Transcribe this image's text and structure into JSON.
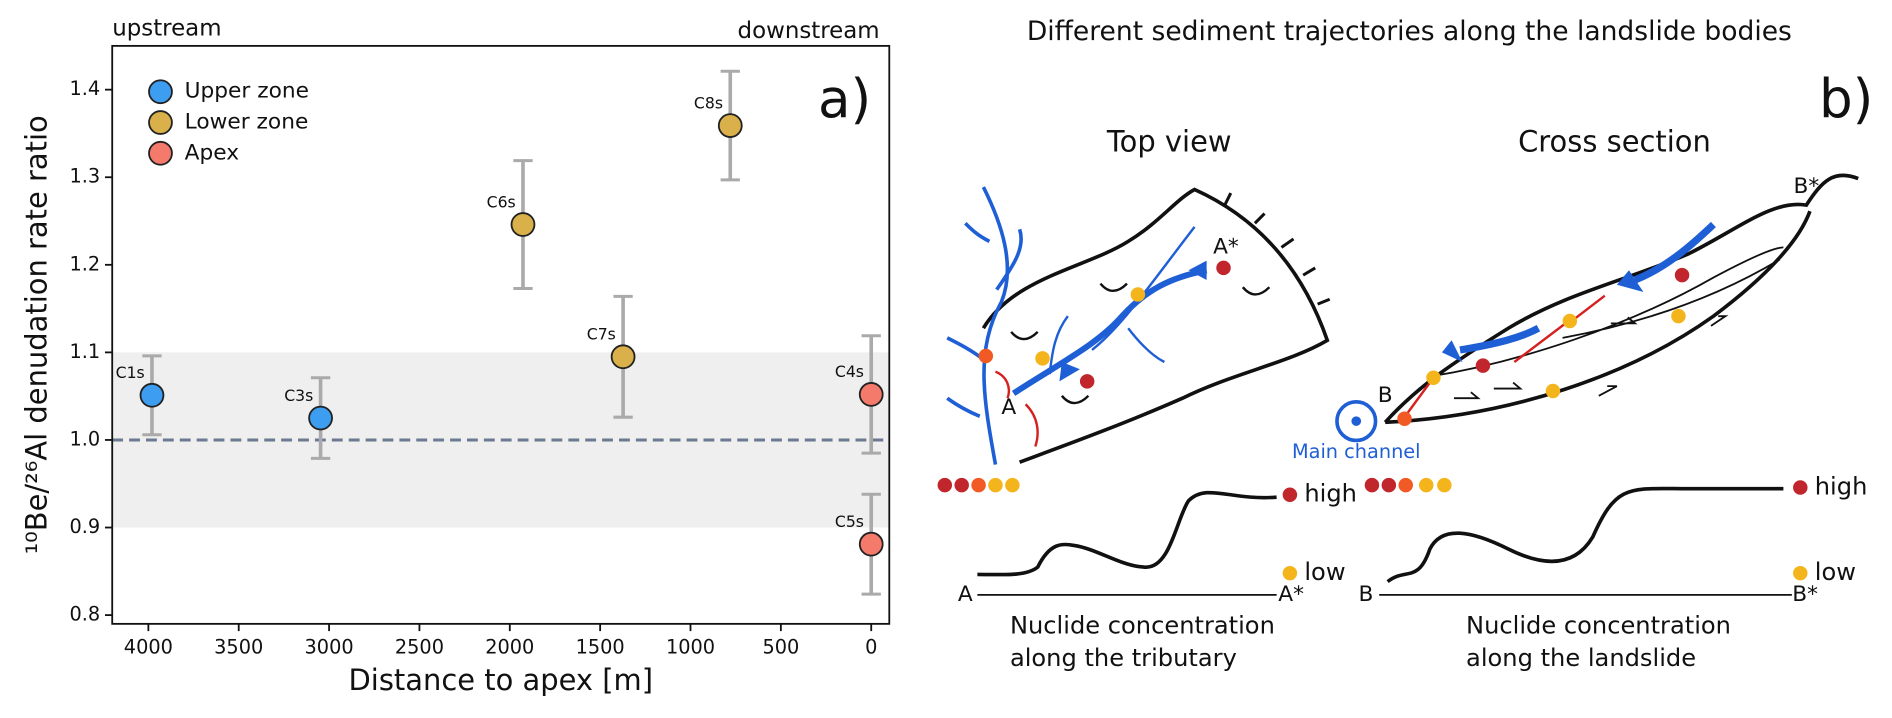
{
  "chart_data": {
    "type": "scatter",
    "xlabel": "Distance to apex [m]",
    "ylabel": "¹⁰Be/²⁶Al denudation rate ratio",
    "annotations": [
      "upstream",
      "downstream",
      "a)"
    ],
    "xlim": [
      4200,
      -100
    ],
    "ylim": [
      0.79,
      1.45
    ],
    "xticks": [
      4000,
      3500,
      3000,
      2500,
      2000,
      1500,
      1000,
      500,
      0
    ],
    "yticks": [
      0.8,
      0.9,
      {
        "value": 1,
        "label": "1.0"
      },
      1.1,
      1.2,
      1.3,
      1.4
    ],
    "band": [
      0.9,
      1.1
    ],
    "band_color": "#efefef",
    "hline": 1,
    "hline_color": "#6b7a90",
    "legend": "upper left",
    "series": [
      {
        "name": "Upper zone",
        "color": "#3d9df0",
        "x": [
          3980,
          3047
        ],
        "values": [
          1.051,
          1.025
        ],
        "err": [
          0.045,
          0.046
        ],
        "labels": [
          "C1s",
          "C3s"
        ]
      },
      {
        "name": "Lower zone",
        "color": "#d9b04a",
        "x": [
          1927,
          1373,
          780
        ],
        "values": [
          1.246,
          1.095,
          1.359
        ],
        "err": [
          0.073,
          0.069,
          0.062
        ],
        "labels": [
          "C6s",
          "C7s",
          "C8s"
        ]
      },
      {
        "name": "Apex",
        "color": "#f47a6c",
        "x": [
          0,
          0
        ],
        "values": [
          1.052,
          0.881
        ],
        "err": [
          0.067,
          0.057
        ],
        "labels": [
          "C4s",
          "C5s"
        ]
      }
    ]
  },
  "diagram": {
    "title": "Different sediment trajectories along the landslide bodies",
    "panel": "b)",
    "top_view": "Top view",
    "cross_section": "Cross section",
    "a_star": "A*",
    "a": "A",
    "b_star": "B*",
    "b": "B",
    "main_channel": "Main channel",
    "high_1": "high",
    "low_1": "low",
    "high_2": "high",
    "low_2": "low",
    "axis_a": "A",
    "axis_a_star": "A*",
    "axis_b": "B",
    "axis_b_star": "B*",
    "tributary_caption": [
      "Nuclide concentration",
      "along the tributary"
    ],
    "landslide_caption": [
      "Nuclide concentration",
      "along the landslide"
    ]
  }
}
